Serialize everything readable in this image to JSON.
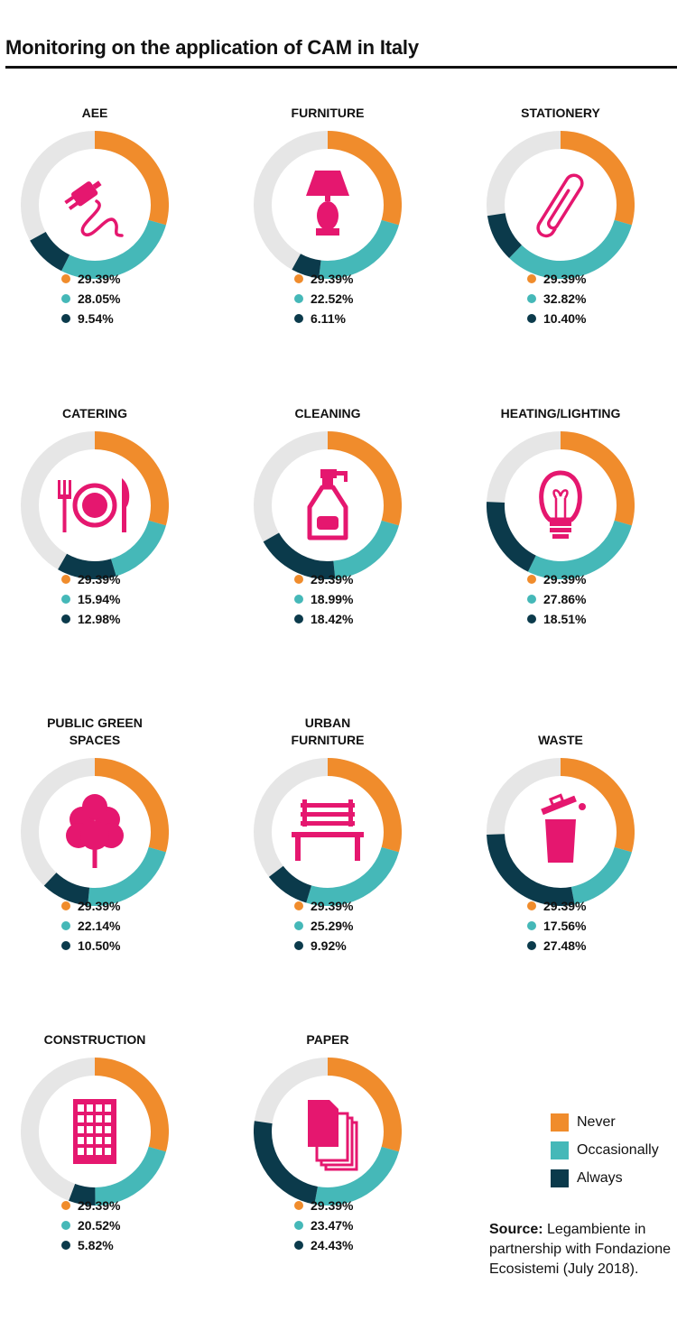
{
  "header": {
    "title": "Monitoring on the application of CAM in Italy"
  },
  "colors": {
    "never": "#F08C2C",
    "occasionally": "#45B8B8",
    "always": "#0B3A4B",
    "remainder": "#E6E6E6",
    "icon": "#E5176F"
  },
  "legend": [
    {
      "label": "Never",
      "color": "#F08C2C"
    },
    {
      "label": "Occasionally",
      "color": "#45B8B8"
    },
    {
      "label": "Always",
      "color": "#0B3A4B"
    }
  ],
  "source": {
    "label": "Source:",
    "text": "Legambiente in partnership with Fondazione Ecosistemi (July 2018)."
  },
  "chart_data": [
    {
      "type": "pie",
      "title": "AEE",
      "icon": "plug-icon",
      "series": [
        "Never",
        "Occasionally",
        "Always"
      ],
      "values": [
        29.39,
        28.05,
        9.54
      ],
      "labels": [
        "29.39%",
        "28.05%",
        "9.54%"
      ]
    },
    {
      "type": "pie",
      "title": "FURNITURE",
      "icon": "lamp-icon",
      "series": [
        "Never",
        "Occasionally",
        "Always"
      ],
      "values": [
        29.39,
        22.52,
        6.11
      ],
      "labels": [
        "29.39%",
        "22.52%",
        "6.11%"
      ]
    },
    {
      "type": "pie",
      "title": "STATIONERY",
      "icon": "paperclip-icon",
      "series": [
        "Never",
        "Occasionally",
        "Always"
      ],
      "values": [
        29.39,
        32.82,
        10.4
      ],
      "labels": [
        "29.39%",
        "32.82%",
        "10.40%"
      ]
    },
    {
      "type": "pie",
      "title": "CATERING",
      "icon": "plate-icon",
      "series": [
        "Never",
        "Occasionally",
        "Always"
      ],
      "values": [
        29.39,
        15.94,
        12.98
      ],
      "labels": [
        "29.39%",
        "15.94%",
        "12.98%"
      ]
    },
    {
      "type": "pie",
      "title": "CLEANING",
      "icon": "spray-bottle-icon",
      "series": [
        "Never",
        "Occasionally",
        "Always"
      ],
      "values": [
        29.39,
        18.99,
        18.42
      ],
      "labels": [
        "29.39%",
        "18.99%",
        "18.42%"
      ]
    },
    {
      "type": "pie",
      "title": "HEATING/LIGHTING",
      "icon": "lightbulb-icon",
      "series": [
        "Never",
        "Occasionally",
        "Always"
      ],
      "values": [
        29.39,
        27.86,
        18.51
      ],
      "labels": [
        "29.39%",
        "27.86%",
        "18.51%"
      ]
    },
    {
      "type": "pie",
      "title": "PUBLIC GREEN SPACES",
      "title_lines": [
        "PUBLIC GREEN",
        "SPACES"
      ],
      "icon": "tree-icon",
      "series": [
        "Never",
        "Occasionally",
        "Always"
      ],
      "values": [
        29.39,
        22.14,
        10.5
      ],
      "labels": [
        "29.39%",
        "22.14%",
        "10.50%"
      ]
    },
    {
      "type": "pie",
      "title": "URBAN FURNITURE",
      "title_lines": [
        "URBAN",
        "FURNITURE"
      ],
      "icon": "bench-icon",
      "series": [
        "Never",
        "Occasionally",
        "Always"
      ],
      "values": [
        29.39,
        25.29,
        9.92
      ],
      "labels": [
        "29.39%",
        "25.29%",
        "9.92%"
      ]
    },
    {
      "type": "pie",
      "title": "WASTE",
      "icon": "trash-bin-icon",
      "series": [
        "Never",
        "Occasionally",
        "Always"
      ],
      "values": [
        29.39,
        17.56,
        27.48
      ],
      "labels": [
        "29.39%",
        "17.56%",
        "27.48%"
      ]
    },
    {
      "type": "pie",
      "title": "CONSTRUCTION",
      "icon": "building-icon",
      "series": [
        "Never",
        "Occasionally",
        "Always"
      ],
      "values": [
        29.39,
        20.52,
        5.82
      ],
      "labels": [
        "29.39%",
        "20.52%",
        "5.82%"
      ]
    },
    {
      "type": "pie",
      "title": "PAPER",
      "icon": "paper-stack-icon",
      "series": [
        "Never",
        "Occasionally",
        "Always"
      ],
      "values": [
        29.39,
        23.47,
        24.43
      ],
      "labels": [
        "29.39%",
        "23.47%",
        "24.43%"
      ]
    }
  ]
}
